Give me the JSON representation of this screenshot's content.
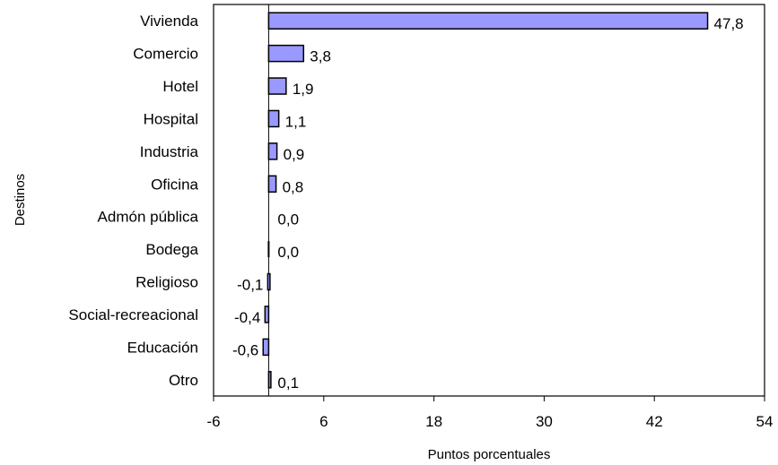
{
  "chart_data": {
    "type": "bar",
    "orientation": "horizontal",
    "title": "",
    "xlabel": "Puntos porcentuales",
    "ylabel": "Destinos",
    "categories": [
      "Vivienda",
      "Comercio",
      "Hotel",
      "Hospital",
      "Industria",
      "Oficina",
      "Admón pública",
      "Bodega",
      "Religioso",
      "Social-recreacional",
      "Educación",
      "Otro"
    ],
    "values": [
      47.8,
      3.8,
      1.9,
      1.1,
      0.9,
      0.8,
      0.0,
      0.0,
      -0.1,
      -0.4,
      -0.6,
      0.1
    ],
    "value_labels": [
      "47,8",
      "3,8",
      "1,9",
      "1,1",
      "0,9",
      "0,8",
      "0,0",
      "0,0",
      "-0,1",
      "-0,4",
      "-0,6",
      "0,1"
    ],
    "xlim": [
      -6,
      54
    ],
    "xticks": [
      -6,
      6,
      18,
      30,
      42,
      54
    ],
    "xtick_labels": [
      "-6",
      "6",
      "18",
      "30",
      "42",
      "54"
    ],
    "grid": false,
    "legend": "none",
    "bar_color": "#9999ff",
    "bar_edge_color": "#000000"
  }
}
